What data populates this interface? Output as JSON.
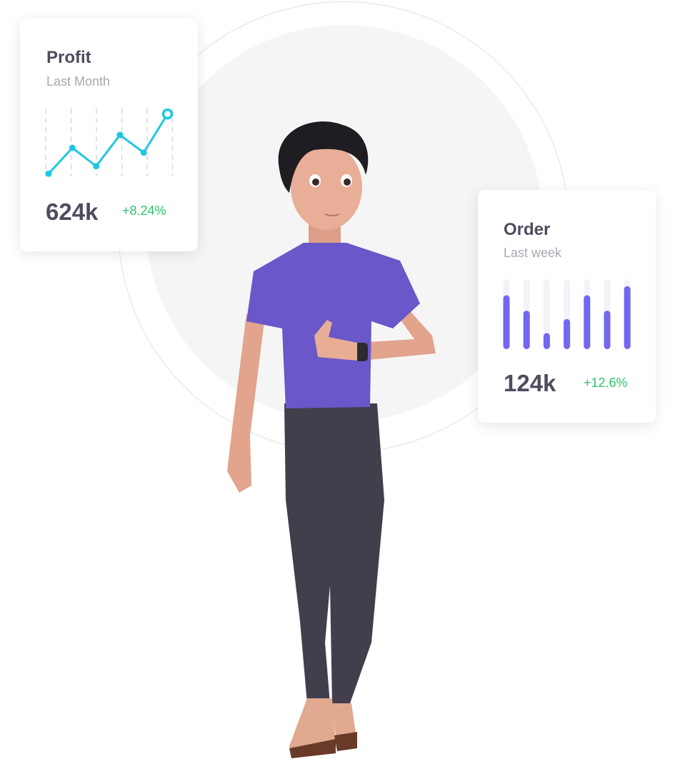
{
  "profit_card": {
    "title": "Profit",
    "subtitle": "Last Month",
    "value": "624k",
    "change": "+8.24%",
    "line_color": "#1ec8e1",
    "chart_data": {
      "type": "line",
      "values": [
        4,
        42,
        15,
        61,
        35,
        92
      ],
      "ylim": [
        0,
        100
      ],
      "grid": "vertical-dashed"
    }
  },
  "order_card": {
    "title": "Order",
    "subtitle": "Last week",
    "value": "124k",
    "change": "+12.6%",
    "bar_color": "#7267ee",
    "track_color": "#f3f2f8",
    "chart_data": {
      "type": "bar",
      "values": [
        0.77,
        0.55,
        0.23,
        0.43,
        0.77,
        0.55,
        0.9
      ],
      "ylim": [
        0,
        1
      ]
    }
  },
  "colors": {
    "accent_green": "#2cc46b",
    "text_dark": "#4f4c5e",
    "text_muted": "#a8a7b1",
    "shirt": "#6a57c9"
  }
}
